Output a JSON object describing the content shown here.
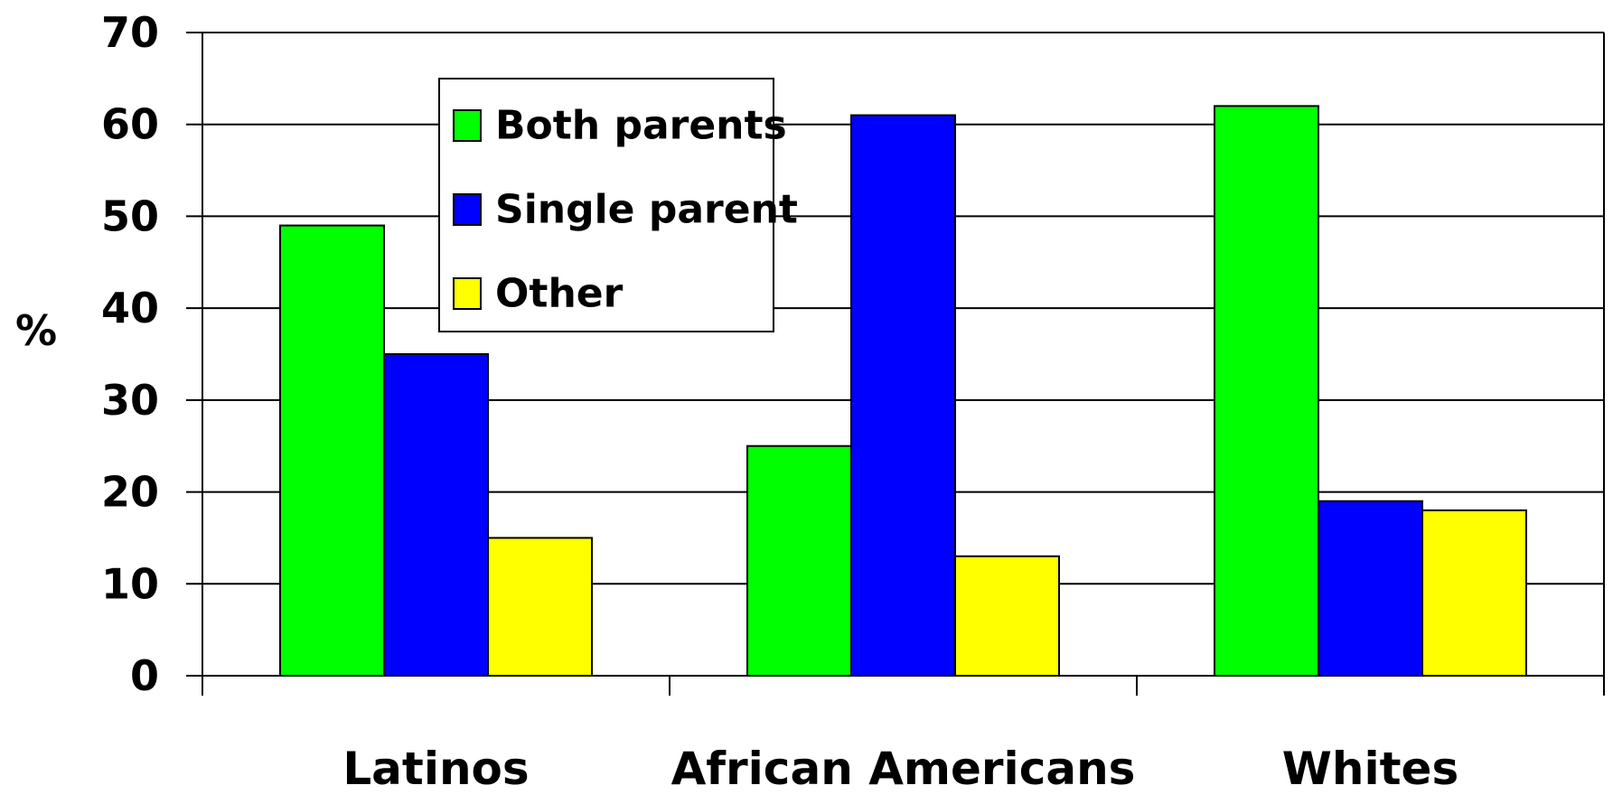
{
  "chart_data": {
    "type": "bar",
    "ylabel": "%",
    "xlabel": "",
    "ylim": [
      0,
      70
    ],
    "yticks": [
      0,
      10,
      20,
      30,
      40,
      50,
      60,
      70
    ],
    "grid": true,
    "legend_position": "top-left",
    "categories": [
      "Latinos",
      "African Americans",
      "Whites"
    ],
    "series": [
      {
        "name": "Both parents",
        "color": "#00ff00",
        "values": [
          49,
          25,
          62
        ]
      },
      {
        "name": "Single parent",
        "color": "#0000ff",
        "values": [
          35,
          61,
          19
        ]
      },
      {
        "name": "Other",
        "color": "#ffff00",
        "values": [
          15,
          13,
          18
        ]
      }
    ]
  }
}
